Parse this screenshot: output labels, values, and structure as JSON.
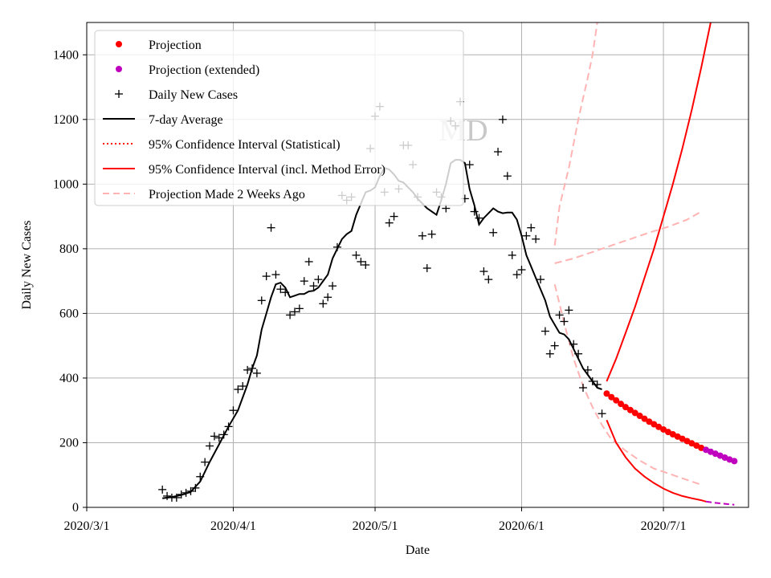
{
  "chart_data": {
    "type": "line",
    "title": "",
    "watermark": "MD",
    "xlabel": "Date",
    "ylabel": "Daily New Cases",
    "ylim": [
      0,
      1500
    ],
    "xlim_day": [
      0,
      140
    ],
    "grid": true,
    "legend_position": "top-left",
    "x_ticks": [
      {
        "day": 0,
        "label": "2020/3/1"
      },
      {
        "day": 31,
        "label": "2020/4/1"
      },
      {
        "day": 61,
        "label": "2020/5/1"
      },
      {
        "day": 92,
        "label": "2020/6/1"
      },
      {
        "day": 122,
        "label": "2020/7/1"
      }
    ],
    "y_ticks": [
      0,
      200,
      400,
      600,
      800,
      1000,
      1200,
      1400
    ],
    "colors": {
      "projection": "#ff0000",
      "projection_extended": "#bf00bf",
      "daily": "#000000",
      "average": "#000000",
      "ci_statistical": "#ff0000",
      "ci_method": "#ff0000",
      "prev_projection": "#ffb3b3",
      "grid": "#b0b0b0"
    },
    "legend": [
      {
        "key": "projection",
        "label": "Projection"
      },
      {
        "key": "projection_extended",
        "label": "Projection (extended)"
      },
      {
        "key": "daily",
        "label": "Daily New Cases"
      },
      {
        "key": "average",
        "label": "7-day Average"
      },
      {
        "key": "ci_statistical",
        "label": "95% Confidence Interval (Statistical)"
      },
      {
        "key": "ci_method",
        "label": "95% Confidence Interval (incl. Method Error)"
      },
      {
        "key": "prev_projection",
        "label": "Projection Made 2 Weeks Ago"
      }
    ],
    "daily_cases": [
      [
        16,
        55
      ],
      [
        17,
        35
      ],
      [
        18,
        30
      ],
      [
        19,
        30
      ],
      [
        20,
        40
      ],
      [
        21,
        45
      ],
      [
        22,
        50
      ],
      [
        23,
        60
      ],
      [
        24,
        95
      ],
      [
        25,
        140
      ],
      [
        26,
        190
      ],
      [
        27,
        220
      ],
      [
        28,
        215
      ],
      [
        29,
        225
      ],
      [
        30,
        250
      ],
      [
        31,
        300
      ],
      [
        32,
        365
      ],
      [
        33,
        375
      ],
      [
        34,
        425
      ],
      [
        35,
        430
      ],
      [
        36,
        415
      ],
      [
        37,
        640
      ],
      [
        38,
        715
      ],
      [
        39,
        865
      ],
      [
        40,
        720
      ],
      [
        41,
        675
      ],
      [
        42,
        665
      ],
      [
        43,
        595
      ],
      [
        44,
        605
      ],
      [
        45,
        615
      ],
      [
        46,
        700
      ],
      [
        47,
        760
      ],
      [
        48,
        685
      ],
      [
        49,
        705
      ],
      [
        50,
        630
      ],
      [
        51,
        650
      ],
      [
        52,
        685
      ],
      [
        53,
        805
      ],
      [
        54,
        965
      ],
      [
        55,
        950
      ],
      [
        56,
        960
      ],
      [
        57,
        780
      ],
      [
        58,
        760
      ],
      [
        59,
        750
      ],
      [
        60,
        1110
      ],
      [
        61,
        1210
      ],
      [
        62,
        1240
      ],
      [
        63,
        975
      ],
      [
        64,
        880
      ],
      [
        65,
        900
      ],
      [
        66,
        985
      ],
      [
        67,
        1120
      ],
      [
        68,
        1120
      ],
      [
        69,
        1060
      ],
      [
        70,
        960
      ],
      [
        71,
        840
      ],
      [
        72,
        740
      ],
      [
        73,
        845
      ],
      [
        74,
        975
      ],
      [
        75,
        960
      ],
      [
        76,
        925
      ],
      [
        77,
        1195
      ],
      [
        78,
        1180
      ],
      [
        79,
        1255
      ],
      [
        80,
        955
      ],
      [
        81,
        1060
      ],
      [
        82,
        915
      ],
      [
        83,
        895
      ],
      [
        84,
        730
      ],
      [
        85,
        705
      ],
      [
        86,
        850
      ],
      [
        87,
        1100
      ],
      [
        88,
        1200
      ],
      [
        89,
        1025
      ],
      [
        90,
        780
      ],
      [
        91,
        720
      ],
      [
        92,
        735
      ],
      [
        93,
        840
      ],
      [
        94,
        865
      ],
      [
        95,
        830
      ],
      [
        96,
        705
      ],
      [
        97,
        545
      ],
      [
        98,
        475
      ],
      [
        99,
        500
      ],
      [
        100,
        595
      ],
      [
        101,
        575
      ],
      [
        102,
        610
      ],
      [
        103,
        505
      ],
      [
        104,
        475
      ],
      [
        105,
        370
      ],
      [
        106,
        425
      ],
      [
        107,
        390
      ],
      [
        108,
        380
      ],
      [
        109,
        290
      ]
    ],
    "seven_day_average": [
      [
        16,
        28
      ],
      [
        18,
        32
      ],
      [
        20,
        38
      ],
      [
        22,
        48
      ],
      [
        24,
        80
      ],
      [
        26,
        140
      ],
      [
        28,
        195
      ],
      [
        30,
        250
      ],
      [
        32,
        300
      ],
      [
        34,
        380
      ],
      [
        35,
        430
      ],
      [
        36,
        470
      ],
      [
        37,
        550
      ],
      [
        38,
        600
      ],
      [
        39,
        650
      ],
      [
        40,
        690
      ],
      [
        41,
        695
      ],
      [
        42,
        680
      ],
      [
        43,
        650
      ],
      [
        44,
        655
      ],
      [
        45,
        660
      ],
      [
        46,
        660
      ],
      [
        47,
        668
      ],
      [
        48,
        670
      ],
      [
        49,
        680
      ],
      [
        50,
        700
      ],
      [
        51,
        720
      ],
      [
        52,
        770
      ],
      [
        53,
        800
      ],
      [
        54,
        830
      ],
      [
        55,
        845
      ],
      [
        56,
        855
      ],
      [
        57,
        905
      ],
      [
        58,
        940
      ],
      [
        59,
        975
      ],
      [
        60,
        980
      ],
      [
        61,
        990
      ],
      [
        62,
        1025
      ],
      [
        63,
        1050
      ],
      [
        64,
        1045
      ],
      [
        65,
        1030
      ],
      [
        66,
        1010
      ],
      [
        67,
        1005
      ],
      [
        68,
        990
      ],
      [
        69,
        975
      ],
      [
        70,
        955
      ],
      [
        71,
        940
      ],
      [
        72,
        925
      ],
      [
        73,
        915
      ],
      [
        74,
        905
      ],
      [
        75,
        950
      ],
      [
        76,
        1000
      ],
      [
        77,
        1065
      ],
      [
        78,
        1075
      ],
      [
        79,
        1075
      ],
      [
        80,
        1065
      ],
      [
        81,
        985
      ],
      [
        82,
        935
      ],
      [
        83,
        875
      ],
      [
        84,
        895
      ],
      [
        85,
        910
      ],
      [
        86,
        925
      ],
      [
        87,
        915
      ],
      [
        88,
        910
      ],
      [
        89,
        912
      ],
      [
        90,
        912
      ],
      [
        91,
        890
      ],
      [
        92,
        840
      ],
      [
        93,
        780
      ],
      [
        94,
        745
      ],
      [
        95,
        710
      ],
      [
        96,
        675
      ],
      [
        97,
        640
      ],
      [
        98,
        590
      ],
      [
        99,
        565
      ],
      [
        100,
        540
      ],
      [
        101,
        535
      ],
      [
        102,
        520
      ],
      [
        103,
        490
      ],
      [
        104,
        460
      ],
      [
        105,
        430
      ],
      [
        106,
        410
      ],
      [
        107,
        390
      ],
      [
        108,
        370
      ],
      [
        109,
        365
      ]
    ],
    "projection": [
      [
        110,
        352
      ],
      [
        111,
        341
      ],
      [
        112,
        331
      ],
      [
        113,
        320
      ],
      [
        114,
        310
      ],
      [
        115,
        301
      ],
      [
        116,
        292
      ],
      [
        117,
        283
      ],
      [
        118,
        274
      ],
      [
        119,
        265
      ],
      [
        120,
        257
      ],
      [
        121,
        249
      ],
      [
        122,
        241
      ],
      [
        123,
        233
      ],
      [
        124,
        226
      ],
      [
        125,
        219
      ],
      [
        126,
        212
      ],
      [
        127,
        205
      ],
      [
        128,
        198
      ],
      [
        129,
        191
      ],
      [
        130,
        184
      ]
    ],
    "projection_extended": [
      [
        131,
        178
      ],
      [
        132,
        172
      ],
      [
        133,
        166
      ],
      [
        134,
        160
      ],
      [
        135,
        154
      ],
      [
        136,
        148
      ],
      [
        137,
        143
      ]
    ],
    "ci_upper": [
      [
        110,
        390
      ],
      [
        112,
        460
      ],
      [
        114,
        540
      ],
      [
        116,
        620
      ],
      [
        118,
        710
      ],
      [
        120,
        800
      ],
      [
        122,
        900
      ],
      [
        124,
        1000
      ],
      [
        126,
        1110
      ],
      [
        128,
        1230
      ],
      [
        130,
        1360
      ],
      [
        132,
        1500
      ]
    ],
    "ci_lower": [
      [
        110,
        270
      ],
      [
        112,
        200
      ],
      [
        114,
        155
      ],
      [
        116,
        120
      ],
      [
        118,
        95
      ],
      [
        120,
        75
      ],
      [
        122,
        58
      ],
      [
        124,
        45
      ],
      [
        126,
        35
      ],
      [
        128,
        28
      ],
      [
        130,
        22
      ],
      [
        131,
        18
      ]
    ],
    "ci_lower_extended": [
      [
        131,
        18
      ],
      [
        133,
        14
      ],
      [
        135,
        11
      ],
      [
        137,
        8
      ]
    ],
    "prev_projection_center": [
      [
        99,
        755
      ],
      [
        103,
        770
      ],
      [
        107,
        790
      ],
      [
        111,
        810
      ],
      [
        115,
        830
      ],
      [
        119,
        850
      ],
      [
        123,
        868
      ],
      [
        127,
        890
      ],
      [
        130,
        915
      ]
    ],
    "prev_projection_upper": [
      [
        99,
        810
      ],
      [
        100,
        930
      ],
      [
        102,
        1050
      ],
      [
        104,
        1200
      ],
      [
        106,
        1330
      ],
      [
        107,
        1400
      ],
      [
        108,
        1500
      ]
    ],
    "prev_projection_lower": [
      [
        99,
        690
      ],
      [
        101,
        570
      ],
      [
        103,
        460
      ],
      [
        105,
        375
      ],
      [
        107,
        310
      ],
      [
        109,
        255
      ],
      [
        111,
        210
      ],
      [
        114,
        175
      ],
      [
        117,
        145
      ],
      [
        120,
        120
      ],
      [
        124,
        100
      ],
      [
        127,
        85
      ],
      [
        130,
        70
      ]
    ]
  }
}
